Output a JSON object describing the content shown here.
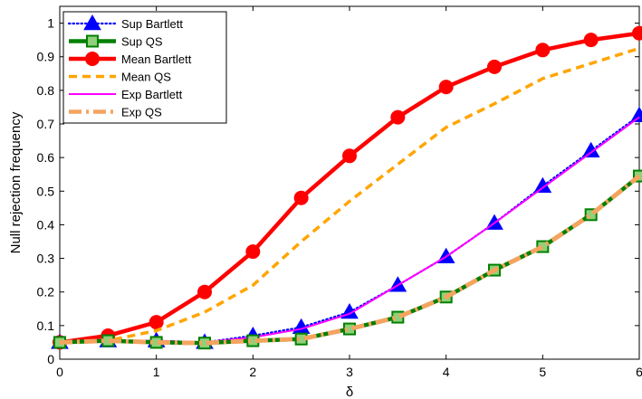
{
  "chart_data": {
    "type": "line",
    "xlabel": "δ",
    "ylabel": "Null rejection frequency",
    "xlim": [
      0,
      6
    ],
    "ylim": [
      0,
      1.05
    ],
    "x_ticks": [
      0,
      1,
      2,
      3,
      4,
      5,
      6
    ],
    "y_ticks": [
      0,
      0.1,
      0.2,
      0.3,
      0.4,
      0.5,
      0.6,
      0.7,
      0.8,
      0.9,
      1
    ],
    "x_tick_labels": [
      "0",
      "1",
      "2",
      "3",
      "4",
      "5",
      "6"
    ],
    "y_tick_labels": [
      "0",
      "0.1",
      "0.2",
      "0.3",
      "0.4",
      "0.5",
      "0.6",
      "0.7",
      "0.8",
      "0.9",
      "1"
    ],
    "grid": false,
    "legend_position": "top-left",
    "x": [
      0,
      0.5,
      1,
      1.5,
      2,
      2.5,
      3,
      3.5,
      4,
      4.5,
      5,
      5.5,
      6
    ],
    "series": [
      {
        "name": "Sup Bartlett",
        "color": "#0000ff",
        "style": "dotted",
        "marker": "triangle",
        "values": [
          0.05,
          0.055,
          0.055,
          0.05,
          0.07,
          0.095,
          0.14,
          0.22,
          0.305,
          0.405,
          0.515,
          0.62,
          0.725
        ]
      },
      {
        "name": "Sup QS",
        "color": "#008000",
        "style": "solid",
        "marker": "square",
        "values": [
          0.05,
          0.055,
          0.05,
          0.048,
          0.055,
          0.06,
          0.09,
          0.125,
          0.185,
          0.265,
          0.335,
          0.43,
          0.545
        ]
      },
      {
        "name": "Mean Bartlett",
        "color": "#ff0000",
        "style": "solid",
        "marker": "circle",
        "values": [
          0.05,
          0.07,
          0.11,
          0.2,
          0.32,
          0.48,
          0.605,
          0.72,
          0.81,
          0.87,
          0.92,
          0.95,
          0.97
        ]
      },
      {
        "name": "Mean QS",
        "color": "#ffa500",
        "style": "dashed",
        "marker": "none",
        "values": [
          0.05,
          0.055,
          0.085,
          0.14,
          0.22,
          0.35,
          0.47,
          0.58,
          0.69,
          0.76,
          0.835,
          0.88,
          0.925
        ]
      },
      {
        "name": "Exp Bartlett",
        "color": "#ff00ff",
        "style": "solid",
        "marker": "none",
        "values": [
          0.05,
          0.055,
          0.055,
          0.05,
          0.065,
          0.09,
          0.135,
          0.22,
          0.305,
          0.405,
          0.51,
          0.615,
          0.72
        ]
      },
      {
        "name": "Exp QS",
        "color": "#f4a460",
        "style": "dashdot",
        "marker": "none",
        "values": [
          0.05,
          0.055,
          0.05,
          0.048,
          0.055,
          0.06,
          0.09,
          0.125,
          0.185,
          0.265,
          0.335,
          0.43,
          0.545
        ]
      }
    ]
  }
}
